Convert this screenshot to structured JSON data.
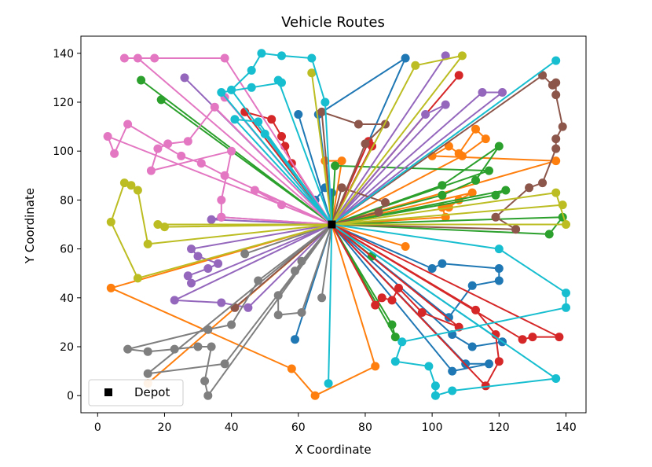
{
  "chart_data": {
    "type": "line",
    "title": "Vehicle Routes",
    "xlabel": "X Coordinate",
    "ylabel": "Y Coordinate",
    "xlim": [
      -5,
      146
    ],
    "ylim": [
      -7,
      147
    ],
    "xticks": [
      0,
      20,
      40,
      60,
      80,
      100,
      120,
      140
    ],
    "yticks": [
      0,
      20,
      40,
      60,
      80,
      100,
      120,
      140
    ],
    "grid": false,
    "legend": {
      "placement": "lower-left",
      "entries": [
        "Depot"
      ]
    },
    "depot": [
      70,
      70
    ],
    "series": [
      {
        "color": "#1f77b4",
        "points": [
          [
            70,
            70
          ],
          [
            92,
            138
          ],
          [
            66,
            115
          ],
          [
            70,
            70
          ],
          [
            60,
            115
          ],
          [
            70,
            70
          ],
          [
            70,
            83
          ],
          [
            68,
            85
          ],
          [
            65,
            80
          ],
          [
            70,
            70
          ],
          [
            59,
            23
          ],
          [
            70,
            70
          ],
          [
            100,
            52
          ],
          [
            103,
            54
          ],
          [
            120,
            52
          ],
          [
            120,
            47
          ],
          [
            112,
            45
          ],
          [
            105,
            32
          ],
          [
            70,
            70
          ],
          [
            106,
            25
          ],
          [
            112,
            20
          ],
          [
            121,
            22
          ],
          [
            70,
            70
          ],
          [
            110,
            13
          ],
          [
            117,
            13
          ],
          [
            106,
            10
          ],
          [
            70,
            70
          ]
        ]
      },
      {
        "color": "#ff7f0e",
        "points": [
          [
            70,
            70
          ],
          [
            73,
            96
          ],
          [
            68,
            96
          ],
          [
            70,
            70
          ],
          [
            137,
            96
          ],
          [
            100,
            98
          ],
          [
            105,
            102
          ],
          [
            108,
            99
          ],
          [
            113,
            109
          ],
          [
            116,
            105
          ],
          [
            109,
            98
          ],
          [
            70,
            70
          ],
          [
            112,
            83
          ],
          [
            108,
            80
          ],
          [
            105,
            77
          ],
          [
            103,
            77
          ],
          [
            104,
            73
          ],
          [
            70,
            70
          ],
          [
            92,
            61
          ],
          [
            70,
            70
          ],
          [
            4,
            44
          ],
          [
            58,
            11
          ],
          [
            65,
            0
          ],
          [
            83,
            12
          ],
          [
            70,
            70
          ],
          [
            15,
            5
          ],
          [
            70,
            70
          ]
        ]
      },
      {
        "color": "#2ca02c",
        "points": [
          [
            70,
            70
          ],
          [
            13,
            129
          ],
          [
            70,
            70
          ],
          [
            19,
            121
          ],
          [
            70,
            70
          ],
          [
            71,
            94
          ],
          [
            117,
            92
          ],
          [
            70,
            70
          ],
          [
            103,
            86
          ],
          [
            120,
            102
          ],
          [
            113,
            88
          ],
          [
            103,
            82
          ],
          [
            70,
            70
          ],
          [
            122,
            84
          ],
          [
            119,
            82
          ],
          [
            70,
            70
          ],
          [
            135,
            66
          ],
          [
            139,
            73
          ],
          [
            70,
            70
          ],
          [
            88,
            29
          ],
          [
            89,
            24
          ],
          [
            70,
            70
          ],
          [
            82,
            57
          ],
          [
            70,
            70
          ]
        ]
      },
      {
        "color": "#d62728",
        "points": [
          [
            70,
            70
          ],
          [
            44,
            116
          ],
          [
            52,
            113
          ],
          [
            55,
            106
          ],
          [
            56,
            102
          ],
          [
            58,
            95
          ],
          [
            70,
            70
          ],
          [
            81,
            104
          ],
          [
            82,
            102
          ],
          [
            70,
            70
          ],
          [
            108,
            131
          ],
          [
            70,
            70
          ],
          [
            83,
            37
          ],
          [
            85,
            40
          ],
          [
            88,
            39
          ],
          [
            90,
            44
          ],
          [
            97,
            34
          ],
          [
            108,
            28
          ],
          [
            70,
            70
          ],
          [
            113,
            35
          ],
          [
            119,
            25
          ],
          [
            120,
            14
          ],
          [
            116,
            4
          ],
          [
            70,
            70
          ],
          [
            127,
            23
          ],
          [
            130,
            24
          ],
          [
            138,
            24
          ],
          [
            70,
            70
          ]
        ]
      },
      {
        "color": "#9467bd",
        "points": [
          [
            70,
            70
          ],
          [
            104,
            139
          ],
          [
            70,
            70
          ],
          [
            98,
            115
          ],
          [
            104,
            119
          ],
          [
            70,
            70
          ],
          [
            115,
            124
          ],
          [
            121,
            124
          ],
          [
            70,
            70
          ],
          [
            26,
            130
          ],
          [
            70,
            70
          ],
          [
            34,
            72
          ],
          [
            37,
            73
          ],
          [
            70,
            70
          ],
          [
            28,
            60
          ],
          [
            30,
            57
          ],
          [
            36,
            54
          ],
          [
            33,
            52
          ],
          [
            27,
            49
          ],
          [
            28,
            46
          ],
          [
            70,
            70
          ],
          [
            23,
            39
          ],
          [
            37,
            38
          ],
          [
            45,
            36
          ],
          [
            70,
            70
          ]
        ]
      },
      {
        "color": "#8c564b",
        "points": [
          [
            70,
            70
          ],
          [
            80,
            103
          ],
          [
            86,
            111
          ],
          [
            78,
            111
          ],
          [
            67,
            116
          ],
          [
            70,
            70
          ],
          [
            133,
            131
          ],
          [
            136,
            127
          ],
          [
            137,
            128
          ],
          [
            137,
            123
          ],
          [
            139,
            110
          ],
          [
            137,
            105
          ],
          [
            137,
            101
          ],
          [
            133,
            87
          ],
          [
            129,
            85
          ],
          [
            119,
            73
          ],
          [
            125,
            68
          ],
          [
            70,
            70
          ],
          [
            73,
            85
          ],
          [
            86,
            79
          ],
          [
            84,
            75
          ],
          [
            70,
            70
          ],
          [
            41,
            36
          ],
          [
            70,
            70
          ]
        ]
      },
      {
        "color": "#e377c2",
        "points": [
          [
            70,
            70
          ],
          [
            38,
            138
          ],
          [
            17,
            138
          ],
          [
            8,
            138
          ],
          [
            12,
            138
          ],
          [
            70,
            70
          ],
          [
            38,
            122
          ],
          [
            70,
            70
          ],
          [
            35,
            118
          ],
          [
            27,
            104
          ],
          [
            21,
            103
          ],
          [
            18,
            101
          ],
          [
            16,
            92
          ],
          [
            40,
            100
          ],
          [
            37,
            80
          ],
          [
            37,
            73
          ],
          [
            70,
            70
          ],
          [
            55,
            78
          ],
          [
            47,
            84
          ],
          [
            70,
            70
          ],
          [
            38,
            90
          ],
          [
            31,
            95
          ],
          [
            25,
            98
          ],
          [
            9,
            111
          ],
          [
            5,
            99
          ],
          [
            3,
            106
          ],
          [
            70,
            70
          ]
        ]
      },
      {
        "color": "#7f7f7f",
        "points": [
          [
            70,
            70
          ],
          [
            44,
            58
          ],
          [
            70,
            70
          ],
          [
            61,
            55
          ],
          [
            59,
            51
          ],
          [
            70,
            70
          ],
          [
            67,
            40
          ],
          [
            70,
            70
          ],
          [
            54,
            41
          ],
          [
            54,
            33
          ],
          [
            61,
            34
          ],
          [
            70,
            70
          ],
          [
            48,
            47
          ],
          [
            40,
            29
          ],
          [
            33,
            27
          ],
          [
            9,
            19
          ],
          [
            15,
            18
          ],
          [
            23,
            19
          ],
          [
            30,
            20
          ],
          [
            34,
            20
          ],
          [
            32,
            6
          ],
          [
            33,
            0
          ],
          [
            70,
            70
          ],
          [
            15,
            9
          ],
          [
            38,
            13
          ],
          [
            70,
            70
          ]
        ]
      },
      {
        "color": "#bcbd22",
        "points": [
          [
            70,
            70
          ],
          [
            64,
            132
          ],
          [
            70,
            70
          ],
          [
            95,
            135
          ],
          [
            109,
            139
          ],
          [
            70,
            70
          ],
          [
            15,
            62
          ],
          [
            12,
            84
          ],
          [
            10,
            86
          ],
          [
            8,
            87
          ],
          [
            4,
            71
          ],
          [
            12,
            48
          ],
          [
            70,
            70
          ],
          [
            18,
            70
          ],
          [
            20,
            69
          ],
          [
            70,
            70
          ],
          [
            137,
            83
          ],
          [
            140,
            70
          ],
          [
            70,
            70
          ],
          [
            139,
            78
          ],
          [
            70,
            70
          ]
        ]
      },
      {
        "color": "#17becf",
        "points": [
          [
            70,
            70
          ],
          [
            40,
            125
          ],
          [
            46,
            133
          ],
          [
            49,
            140
          ],
          [
            55,
            139
          ],
          [
            64,
            138
          ],
          [
            68,
            120
          ],
          [
            70,
            70
          ],
          [
            54,
            129
          ],
          [
            55,
            128
          ],
          [
            46,
            126
          ],
          [
            37,
            124
          ],
          [
            70,
            70
          ],
          [
            48,
            112
          ],
          [
            41,
            113
          ],
          [
            70,
            70
          ],
          [
            50,
            107
          ],
          [
            70,
            70
          ],
          [
            137,
            137
          ],
          [
            70,
            70
          ],
          [
            120,
            60
          ],
          [
            140,
            42
          ],
          [
            140,
            36
          ],
          [
            91,
            22
          ],
          [
            89,
            14
          ],
          [
            99,
            12
          ],
          [
            101,
            4
          ],
          [
            101,
            0
          ],
          [
            106,
            2
          ],
          [
            137,
            7
          ],
          [
            70,
            70
          ],
          [
            69,
            5
          ],
          [
            70,
            70
          ]
        ]
      }
    ]
  }
}
